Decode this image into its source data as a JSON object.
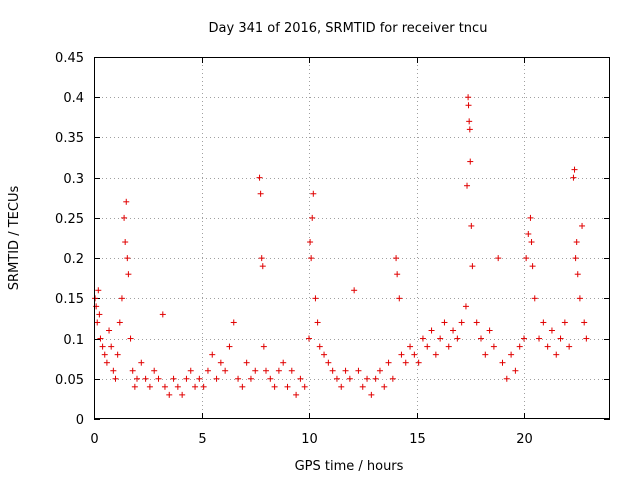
{
  "chart_data": {
    "type": "scatter",
    "title": "Day 341 of 2016, SRMTID for receiver tncu",
    "xlabel": "GPS time / hours",
    "ylabel": "SRMTID / TECUs",
    "xlim": [
      0,
      24
    ],
    "ylim": [
      0,
      0.45
    ],
    "x_ticks": [
      0,
      5,
      10,
      15,
      20
    ],
    "x_tick_labels": [
      "0",
      "5",
      "10",
      "15",
      "20"
    ],
    "y_ticks": [
      0,
      0.05,
      0.1,
      0.15,
      0.2,
      0.25,
      0.3,
      0.35,
      0.4,
      0.45
    ],
    "y_tick_labels": [
      "0",
      "0.05",
      "0.1",
      "0.15",
      "0.2",
      "0.25",
      "0.3",
      "0.35",
      "0.4",
      "0.45"
    ],
    "grid": true,
    "marker": "+",
    "marker_color": "#e00000",
    "series": [
      {
        "name": "SRMTID",
        "points": [
          [
            0.05,
            0.15
          ],
          [
            0.1,
            0.14
          ],
          [
            0.15,
            0.12
          ],
          [
            0.2,
            0.16
          ],
          [
            0.25,
            0.13
          ],
          [
            0.3,
            0.1
          ],
          [
            0.4,
            0.09
          ],
          [
            0.5,
            0.08
          ],
          [
            0.6,
            0.07
          ],
          [
            0.7,
            0.11
          ],
          [
            0.8,
            0.09
          ],
          [
            0.9,
            0.06
          ],
          [
            1.0,
            0.05
          ],
          [
            1.1,
            0.08
          ],
          [
            1.2,
            0.12
          ],
          [
            1.3,
            0.15
          ],
          [
            1.4,
            0.25
          ],
          [
            1.45,
            0.22
          ],
          [
            1.5,
            0.27
          ],
          [
            1.55,
            0.2
          ],
          [
            1.6,
            0.18
          ],
          [
            1.7,
            0.1
          ],
          [
            1.8,
            0.06
          ],
          [
            1.9,
            0.04
          ],
          [
            2.0,
            0.05
          ],
          [
            2.2,
            0.07
          ],
          [
            2.4,
            0.05
          ],
          [
            2.6,
            0.04
          ],
          [
            2.8,
            0.06
          ],
          [
            3.0,
            0.05
          ],
          [
            3.2,
            0.13
          ],
          [
            3.3,
            0.04
          ],
          [
            3.5,
            0.03
          ],
          [
            3.7,
            0.05
          ],
          [
            3.9,
            0.04
          ],
          [
            4.1,
            0.03
          ],
          [
            4.3,
            0.05
          ],
          [
            4.5,
            0.06
          ],
          [
            4.7,
            0.04
          ],
          [
            4.9,
            0.05
          ],
          [
            5.1,
            0.04
          ],
          [
            5.3,
            0.06
          ],
          [
            5.5,
            0.08
          ],
          [
            5.7,
            0.05
          ],
          [
            5.9,
            0.07
          ],
          [
            6.1,
            0.06
          ],
          [
            6.3,
            0.09
          ],
          [
            6.5,
            0.12
          ],
          [
            6.7,
            0.05
          ],
          [
            6.9,
            0.04
          ],
          [
            7.1,
            0.07
          ],
          [
            7.3,
            0.05
          ],
          [
            7.5,
            0.06
          ],
          [
            7.7,
            0.3
          ],
          [
            7.75,
            0.28
          ],
          [
            7.8,
            0.2
          ],
          [
            7.85,
            0.19
          ],
          [
            7.9,
            0.09
          ],
          [
            8.0,
            0.06
          ],
          [
            8.2,
            0.05
          ],
          [
            8.4,
            0.04
          ],
          [
            8.6,
            0.06
          ],
          [
            8.8,
            0.07
          ],
          [
            9.0,
            0.04
          ],
          [
            9.2,
            0.06
          ],
          [
            9.4,
            0.03
          ],
          [
            9.6,
            0.05
          ],
          [
            9.8,
            0.04
          ],
          [
            10.0,
            0.1
          ],
          [
            10.05,
            0.22
          ],
          [
            10.1,
            0.2
          ],
          [
            10.15,
            0.25
          ],
          [
            10.2,
            0.28
          ],
          [
            10.3,
            0.15
          ],
          [
            10.4,
            0.12
          ],
          [
            10.5,
            0.09
          ],
          [
            10.7,
            0.08
          ],
          [
            10.9,
            0.07
          ],
          [
            11.1,
            0.06
          ],
          [
            11.3,
            0.05
          ],
          [
            11.5,
            0.04
          ],
          [
            11.7,
            0.06
          ],
          [
            11.9,
            0.05
          ],
          [
            12.1,
            0.16
          ],
          [
            12.3,
            0.06
          ],
          [
            12.5,
            0.04
          ],
          [
            12.7,
            0.05
          ],
          [
            12.9,
            0.03
          ],
          [
            13.1,
            0.05
          ],
          [
            13.3,
            0.06
          ],
          [
            13.5,
            0.04
          ],
          [
            13.7,
            0.07
          ],
          [
            13.9,
            0.05
          ],
          [
            14.05,
            0.2
          ],
          [
            14.1,
            0.18
          ],
          [
            14.2,
            0.15
          ],
          [
            14.3,
            0.08
          ],
          [
            14.5,
            0.07
          ],
          [
            14.7,
            0.09
          ],
          [
            14.9,
            0.08
          ],
          [
            15.1,
            0.07
          ],
          [
            15.3,
            0.1
          ],
          [
            15.5,
            0.09
          ],
          [
            15.7,
            0.11
          ],
          [
            15.9,
            0.08
          ],
          [
            16.1,
            0.1
          ],
          [
            16.3,
            0.12
          ],
          [
            16.5,
            0.09
          ],
          [
            16.7,
            0.11
          ],
          [
            16.9,
            0.1
          ],
          [
            17.1,
            0.12
          ],
          [
            17.3,
            0.14
          ],
          [
            17.35,
            0.29
          ],
          [
            17.4,
            0.4
          ],
          [
            17.42,
            0.39
          ],
          [
            17.45,
            0.37
          ],
          [
            17.48,
            0.36
          ],
          [
            17.5,
            0.32
          ],
          [
            17.55,
            0.24
          ],
          [
            17.6,
            0.19
          ],
          [
            17.8,
            0.12
          ],
          [
            18.0,
            0.1
          ],
          [
            18.2,
            0.08
          ],
          [
            18.4,
            0.11
          ],
          [
            18.6,
            0.09
          ],
          [
            18.8,
            0.2
          ],
          [
            19.0,
            0.07
          ],
          [
            19.2,
            0.05
          ],
          [
            19.4,
            0.08
          ],
          [
            19.6,
            0.06
          ],
          [
            19.8,
            0.09
          ],
          [
            20.0,
            0.1
          ],
          [
            20.1,
            0.2
          ],
          [
            20.2,
            0.23
          ],
          [
            20.3,
            0.25
          ],
          [
            20.35,
            0.22
          ],
          [
            20.4,
            0.19
          ],
          [
            20.5,
            0.15
          ],
          [
            20.7,
            0.1
          ],
          [
            20.9,
            0.12
          ],
          [
            21.1,
            0.09
          ],
          [
            21.3,
            0.11
          ],
          [
            21.5,
            0.08
          ],
          [
            21.7,
            0.1
          ],
          [
            21.9,
            0.12
          ],
          [
            22.1,
            0.09
          ],
          [
            22.3,
            0.3
          ],
          [
            22.35,
            0.31
          ],
          [
            22.4,
            0.2
          ],
          [
            22.45,
            0.22
          ],
          [
            22.5,
            0.18
          ],
          [
            22.6,
            0.15
          ],
          [
            22.7,
            0.24
          ],
          [
            22.8,
            0.12
          ],
          [
            22.9,
            0.1
          ]
        ]
      }
    ]
  }
}
